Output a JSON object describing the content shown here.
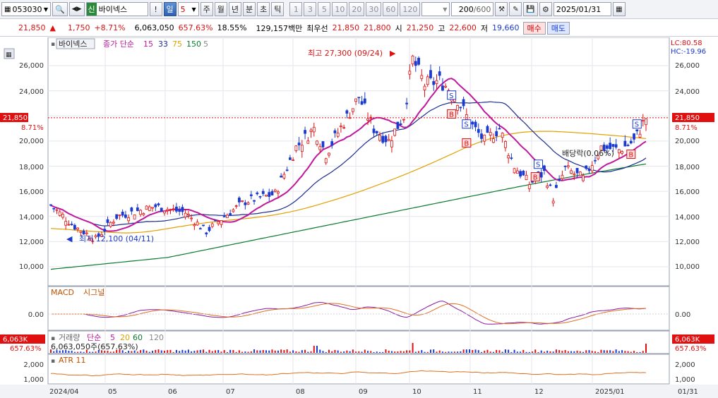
{
  "toolbar": {
    "code": "053030",
    "market_tag": "신",
    "name": "바이넥스",
    "alert_label": "!",
    "period_active": "일",
    "period_value": "5",
    "periods": [
      "주",
      "월",
      "년",
      "분",
      "초",
      "틱"
    ],
    "intervals": [
      "1",
      "3",
      "5",
      "10",
      "20",
      "30",
      "60",
      "120"
    ],
    "count": "200",
    "count_max": "/600",
    "date": "2025/01/31"
  },
  "quote": {
    "price": "21,850",
    "change_arrow": "▲",
    "change": "1,750",
    "change_pct": "+8.71%",
    "volume": "6,063,050",
    "volume_ratio": "657.63%",
    "turnover": "18.55%",
    "amount": "129,157백만",
    "best_label": "최우선",
    "best_ask": "21,850",
    "best_bid": "21,800",
    "open_label": "시",
    "open": "21,250",
    "high_label": "고",
    "high": "22,600",
    "low_label": "저",
    "low": "19,660",
    "buy_label": "매수",
    "sell_label": "매도"
  },
  "chart": {
    "legend_name": "바이넥스",
    "ma_label": "종가 단순",
    "ma_periods": [
      "15",
      "33",
      "75",
      "150",
      "5"
    ],
    "ma_colors": [
      "#c0189c",
      "#1c2c8c",
      "#e0a000",
      "#0a7a30",
      "#888888"
    ],
    "lc_label": "LC:80.58",
    "hc_label": "HC:-19.96",
    "current_price": "21,850",
    "current_pct": "8.71%",
    "high_annotation": "최고 27,300 (09/24)",
    "low_annotation": "최저 12,100 (04/11)",
    "dividend_annotation": "배당락(0.06%)",
    "price_ticks": [
      "26,000",
      "24,000",
      "22,000",
      "20,000",
      "18,000",
      "16,000",
      "14,000",
      "12,000",
      "10,000"
    ],
    "macd_label": "MACD",
    "macd_signal_label": "시그널",
    "macd_tick": "0.00",
    "volume_label": "거래량",
    "volume_ma_label": "단순",
    "volume_ma_periods": [
      "5",
      "20",
      "60",
      "120"
    ],
    "volume_readout": "6,063,050주(657.63%)",
    "volume_current": "6,063K",
    "volume_current_pct": "657.63%",
    "atr_label": "ATR 11",
    "atr_ticks": [
      "2,000",
      "1,000"
    ],
    "x_labels": [
      "2024/04",
      "05",
      "06",
      "07",
      "08",
      "09",
      "10",
      "11",
      "12",
      "2025/01"
    ],
    "x_end_label": "01/31",
    "buy_marker": "B",
    "sell_marker": "S"
  },
  "colors": {
    "up": "#e01010",
    "down": "#1a3ad0",
    "current_line": "#e01010"
  }
}
